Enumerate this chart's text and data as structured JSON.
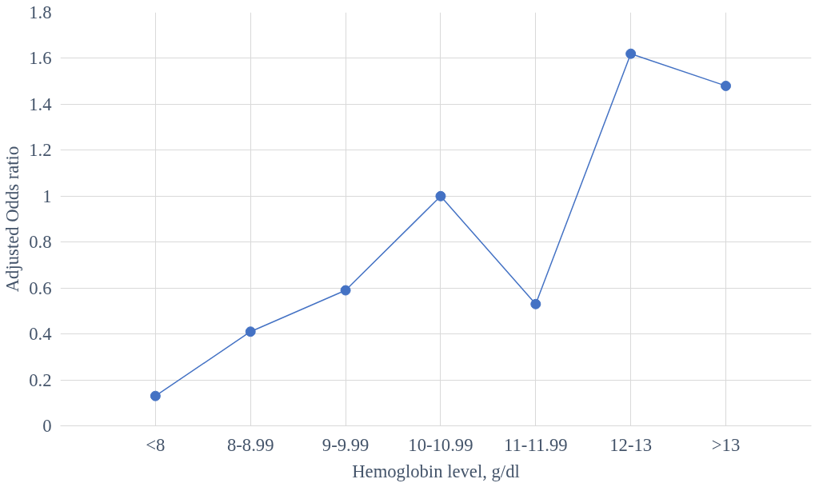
{
  "chart_data": {
    "type": "line",
    "xlabel": "Hemoglobin level, g/dl",
    "ylabel": "Adjusted Odds ratio",
    "categories": [
      "<8",
      "8-8.99",
      "9-9.99",
      "10-10.99",
      "11-11.99",
      "12-13",
      ">13"
    ],
    "series": [
      {
        "color": "#4472c4",
        "values": [
          0.13,
          0.41,
          0.59,
          1.0,
          0.53,
          1.62,
          1.48
        ]
      }
    ],
    "ylim": [
      0,
      1.8
    ],
    "yticks": [
      0,
      0.2,
      0.4,
      0.6,
      0.8,
      1,
      1.2,
      1.4,
      1.6,
      1.8
    ],
    "grid": true,
    "marker": "circle",
    "line_style": "solid"
  }
}
